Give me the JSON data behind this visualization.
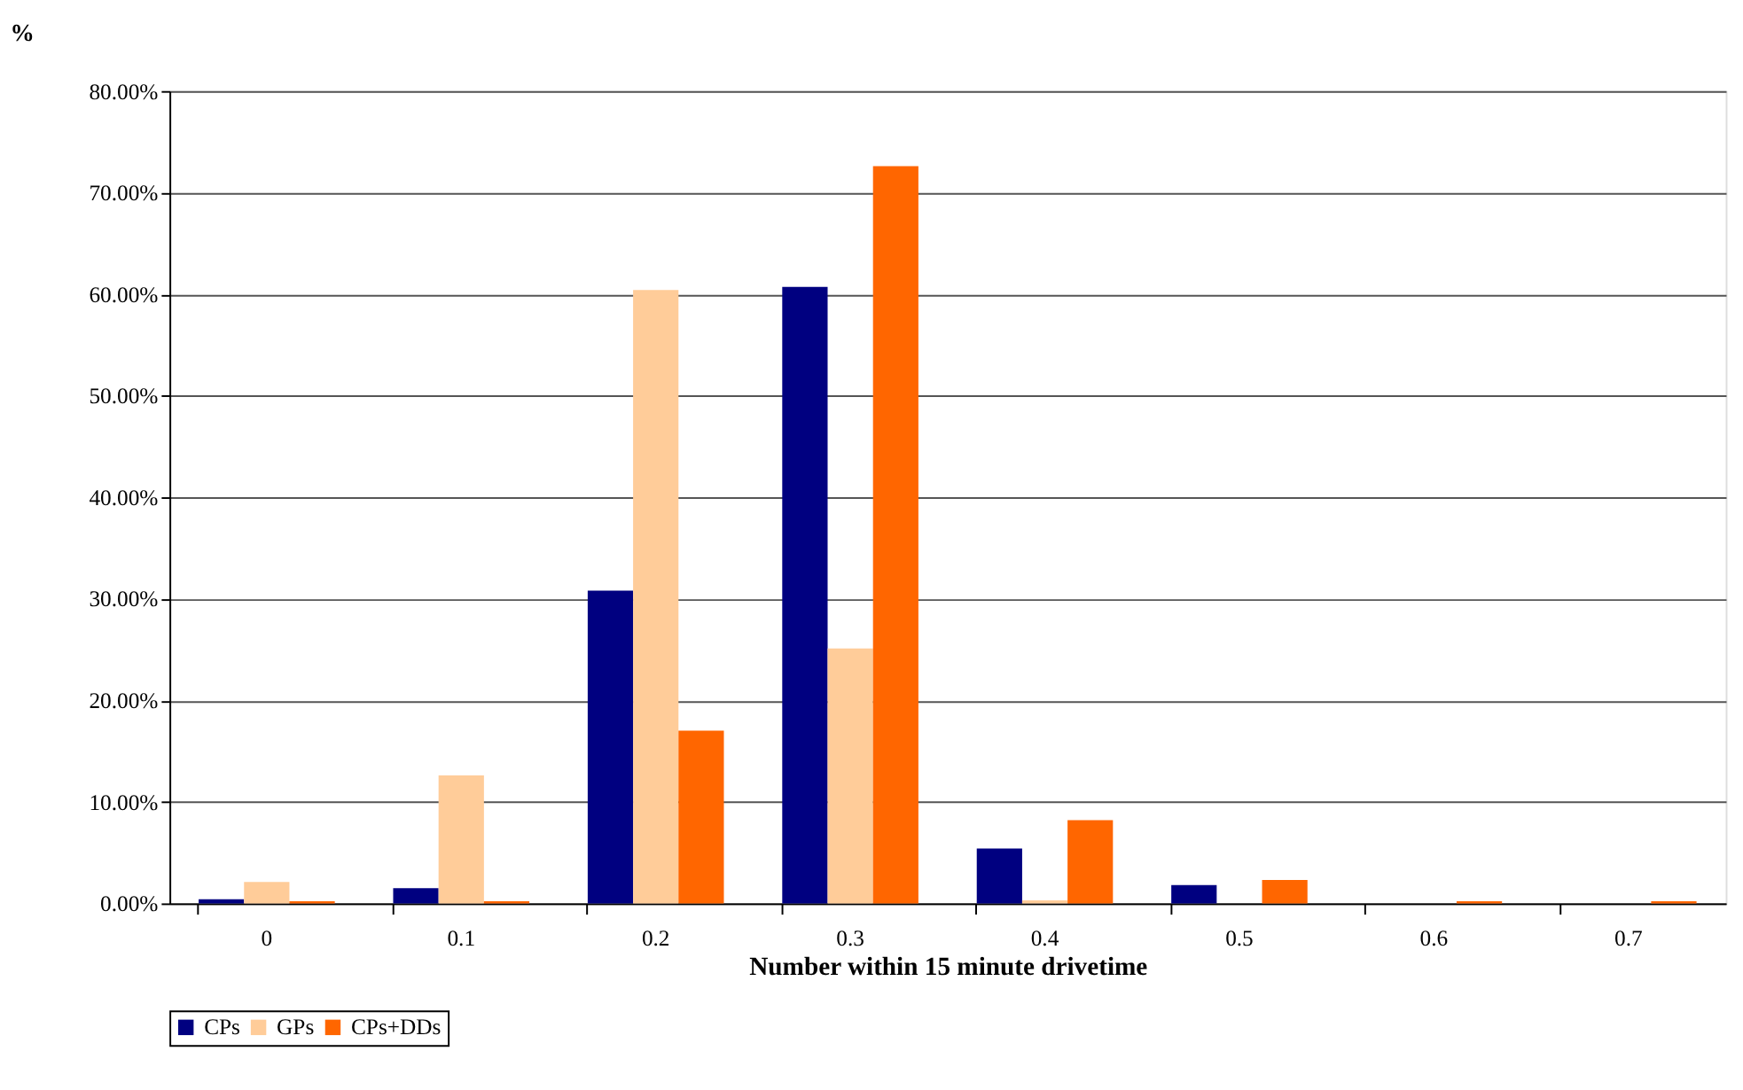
{
  "chart_data": {
    "type": "bar",
    "xlabel": "Number within 15 minute drivetime",
    "ylabel": "%",
    "categories": [
      "0",
      "0.1",
      "0.2",
      "0.3",
      "0.4",
      "0.5",
      "0.6",
      "0.7"
    ],
    "series": [
      {
        "name": "CPs",
        "color": "#000080",
        "values": [
          0.4,
          1.5,
          30.8,
          60.7,
          5.4,
          1.8,
          0,
          0
        ]
      },
      {
        "name": "GPs",
        "color": "#ffcc99",
        "values": [
          2.1,
          12.6,
          60.4,
          25.1,
          0.3,
          0,
          0,
          0
        ]
      },
      {
        "name": "CPs+DDs",
        "color": "#ff6600",
        "values": [
          0.2,
          0.2,
          17.0,
          72.6,
          8.2,
          2.3,
          0.2,
          0.2
        ]
      }
    ],
    "ylim": [
      0,
      80
    ],
    "yticks": [
      {
        "value": 0,
        "label": "0.00%"
      },
      {
        "value": 10,
        "label": "10.00%"
      },
      {
        "value": 20,
        "label": "20.00%"
      },
      {
        "value": 30,
        "label": "30.00%"
      },
      {
        "value": 40,
        "label": "40.00%"
      },
      {
        "value": 50,
        "label": "50.00%"
      },
      {
        "value": 60,
        "label": "60.00%"
      },
      {
        "value": 70,
        "label": "70.00%"
      },
      {
        "value": 80,
        "label": "80.00%"
      }
    ],
    "grid": "y",
    "legend": "bottom"
  }
}
